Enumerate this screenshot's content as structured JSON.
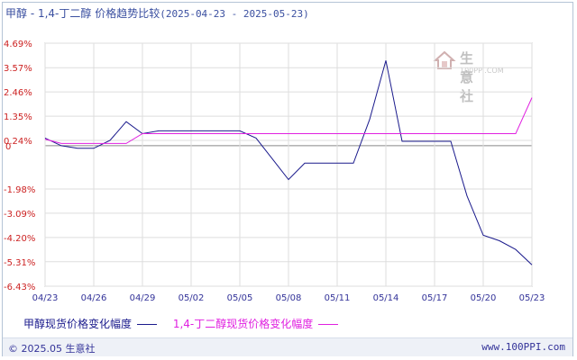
{
  "title": {
    "main": "甲醇 - 1,4-丁二醇 价格趋势比较",
    "range": "(2025-04-23 - 2025-05-23)"
  },
  "watermark": {
    "name": "生意社",
    "url": "100PPI.COM"
  },
  "footer": {
    "copyright": "© 2025.05 生意社",
    "url": "www.100PPI.com"
  },
  "legend": [
    {
      "label": "甲醇现货价格变化幅度",
      "color": "#1a1a8c"
    },
    {
      "label": "1,4-丁二醇现货价格变化幅度",
      "color": "#e020e0"
    }
  ],
  "chart_data": {
    "type": "line",
    "title": "甲醇 - 1,4-丁二醇 价格趋势比较",
    "xlabel": "",
    "ylabel": "",
    "x_ticks": [
      "04/23",
      "04/26",
      "04/29",
      "05/02",
      "05/05",
      "05/08",
      "05/11",
      "05/14",
      "05/17",
      "05/20",
      "05/23"
    ],
    "y_ticks": [
      "4.69%",
      "3.57%",
      "2.46%",
      "1.35%",
      "0.24%",
      "0",
      "-1.98%",
      "-3.09%",
      "-4.20%",
      "-5.31%",
      "-6.43%"
    ],
    "ylim": [
      -6.43,
      4.69
    ],
    "x_range": [
      "04/23",
      "05/23"
    ],
    "grid": true,
    "series": [
      {
        "name": "甲醇现货价格变化幅度",
        "color": "#1a1a8c",
        "points": [
          [
            "04/23",
            0.35
          ],
          [
            "04/24",
            0.0
          ],
          [
            "04/25",
            -0.12
          ],
          [
            "04/26",
            -0.12
          ],
          [
            "04/27",
            0.24
          ],
          [
            "04/28",
            1.1
          ],
          [
            "04/29",
            0.55
          ],
          [
            "04/30",
            0.68
          ],
          [
            "05/01",
            0.68
          ],
          [
            "05/02",
            0.68
          ],
          [
            "05/03",
            0.68
          ],
          [
            "05/04",
            0.68
          ],
          [
            "05/05",
            0.68
          ],
          [
            "05/06",
            0.35
          ],
          [
            "05/07",
            -0.6
          ],
          [
            "05/08",
            -1.55
          ],
          [
            "05/09",
            -0.8
          ],
          [
            "05/10",
            -0.8
          ],
          [
            "05/11",
            -0.8
          ],
          [
            "05/12",
            -0.8
          ],
          [
            "05/13",
            1.2
          ],
          [
            "05/14",
            3.9
          ],
          [
            "05/15",
            0.2
          ],
          [
            "05/16",
            0.2
          ],
          [
            "05/17",
            0.2
          ],
          [
            "05/18",
            0.2
          ],
          [
            "05/19",
            -2.3
          ],
          [
            "05/20",
            -4.1
          ],
          [
            "05/21",
            -4.35
          ],
          [
            "05/22",
            -4.75
          ],
          [
            "05/23",
            -5.45
          ]
        ]
      },
      {
        "name": "1,4-丁二醇现货价格变化幅度",
        "color": "#e020e0",
        "points": [
          [
            "04/23",
            0.3
          ],
          [
            "04/24",
            0.1
          ],
          [
            "04/25",
            0.1
          ],
          [
            "04/26",
            0.1
          ],
          [
            "04/27",
            0.1
          ],
          [
            "04/28",
            0.1
          ],
          [
            "04/29",
            0.55
          ],
          [
            "04/30",
            0.55
          ],
          [
            "05/01",
            0.55
          ],
          [
            "05/02",
            0.55
          ],
          [
            "05/03",
            0.55
          ],
          [
            "05/04",
            0.55
          ],
          [
            "05/05",
            0.55
          ],
          [
            "05/06",
            0.55
          ],
          [
            "05/07",
            0.55
          ],
          [
            "05/08",
            0.55
          ],
          [
            "05/09",
            0.55
          ],
          [
            "05/10",
            0.55
          ],
          [
            "05/11",
            0.55
          ],
          [
            "05/12",
            0.55
          ],
          [
            "05/13",
            0.55
          ],
          [
            "05/14",
            0.55
          ],
          [
            "05/15",
            0.55
          ],
          [
            "05/16",
            0.55
          ],
          [
            "05/17",
            0.55
          ],
          [
            "05/18",
            0.55
          ],
          [
            "05/19",
            0.55
          ],
          [
            "05/20",
            0.55
          ],
          [
            "05/21",
            0.55
          ],
          [
            "05/22",
            0.55
          ],
          [
            "05/23",
            2.2
          ]
        ]
      }
    ]
  }
}
